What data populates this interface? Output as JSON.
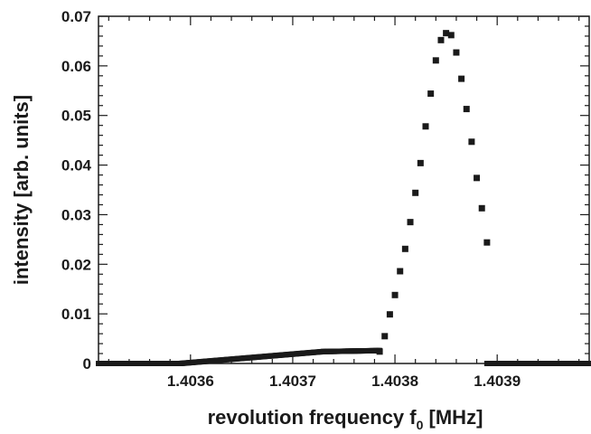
{
  "chart_data": {
    "type": "scatter",
    "xlabel": {
      "main": "revolution frequency f",
      "subscript": "0",
      "unit": " [MHz]"
    },
    "ylabel": "intensity [arb. units]",
    "xlim": [
      1.40351,
      1.40399
    ],
    "ylim": [
      0,
      0.07
    ],
    "xticks": [
      1.4036,
      1.4037,
      1.4038,
      1.4039
    ],
    "xtick_labels": [
      "1.4036",
      "1.4037",
      "1.4038",
      "1.4039"
    ],
    "yticks": [
      0,
      0.01,
      0.02,
      0.03,
      0.04,
      0.05,
      0.06,
      0.07
    ],
    "ytick_labels": [
      "0",
      "0.01",
      "0.02",
      "0.03",
      "0.04",
      "0.05",
      "0.06",
      "0.07"
    ],
    "grid": false,
    "marker": "square",
    "marker_color": "#1a1a1a",
    "baseline_segments": [
      {
        "x_start": 1.40351,
        "x_end": 1.40359,
        "y_start": 0.0,
        "y_end": 0.0
      },
      {
        "x_start": 1.40359,
        "x_end": 1.40373,
        "y_start": 0.0,
        "y_end": 0.0024
      },
      {
        "x_start": 1.40373,
        "x_end": 1.403785,
        "y_start": 0.0024,
        "y_end": 0.0026
      },
      {
        "x_start": 1.40389,
        "x_end": 1.40399,
        "y_start": 0.0,
        "y_end": 0.0
      }
    ],
    "baseline_step": 1.2e-06,
    "peak_x": [
      1.403785,
      1.40379,
      1.403795,
      1.4038,
      1.403805,
      1.40381,
      1.403815,
      1.40382,
      1.403825,
      1.40383,
      1.403835,
      1.40384,
      1.403845,
      1.40385,
      1.403855,
      1.40386,
      1.403865,
      1.40387,
      1.403875,
      1.40388,
      1.403885,
      1.40389
    ],
    "peak_y": [
      0.0024,
      0.0055,
      0.0099,
      0.0138,
      0.0186,
      0.0231,
      0.0285,
      0.0344,
      0.0404,
      0.0478,
      0.0544,
      0.0611,
      0.0652,
      0.0666,
      0.0662,
      0.0627,
      0.0574,
      0.0513,
      0.0447,
      0.0374,
      0.0313,
      0.0244
    ]
  }
}
